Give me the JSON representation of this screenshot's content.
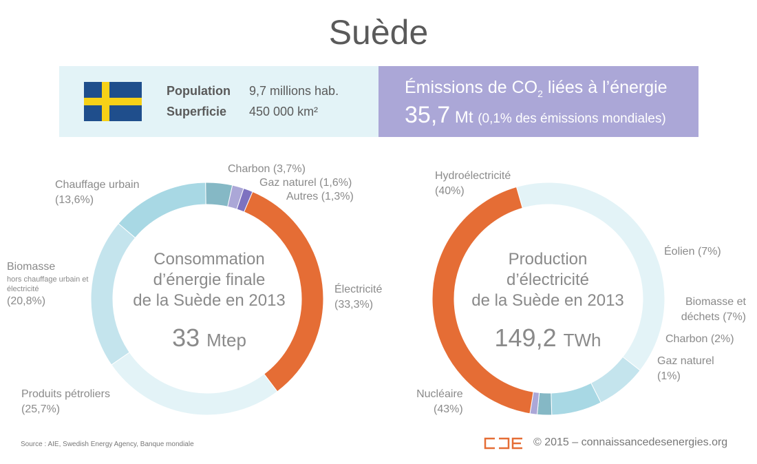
{
  "title": "Suède",
  "info": {
    "population_label": "Population",
    "population_value": "9,7 millions hab.",
    "area_label": "Superficie",
    "area_value": "450 000 km²",
    "co2_title_pre": "Émissions de CO",
    "co2_title_sub": "2",
    "co2_title_post": " liées à l’énergie",
    "co2_value": "35,7",
    "co2_unit": " Mt ",
    "co2_share": "(0,1% des émissions mondiales)"
  },
  "colors": {
    "flag_blue": "#1f4e8c",
    "flag_yellow": "#f7d117",
    "info_left_bg": "#e3f3f7",
    "info_right_bg": "#aba7d7",
    "orange": "#e56d35"
  },
  "chart_data": [
    {
      "type": "donut",
      "title_lines": [
        "Consommation",
        "d’énergie finale",
        "de la Suède en 2013"
      ],
      "total_value": "33",
      "total_unit": "Mtep",
      "slices": [
        {
          "name": "Électricité",
          "value": 33.3,
          "label_value": "(33,3%)",
          "color": "#e56d35"
        },
        {
          "name": "Produits pétroliers",
          "value": 25.7,
          "label_value": "(25,7%)",
          "color": "#e3f3f7"
        },
        {
          "name": "Biomasse",
          "note": "hors chauffage urbain et électricité",
          "value": 20.8,
          "label_value": "(20,8%)",
          "color": "#c4e4ed"
        },
        {
          "name": "Chauffage urbain",
          "value": 13.6,
          "label_value": "(13,6%)",
          "color": "#a8d8e4"
        },
        {
          "name": "Charbon",
          "value": 3.7,
          "label_value": "(3,7%)",
          "color": "#85b8c5"
        },
        {
          "name": "Gaz naturel",
          "value": 1.6,
          "label_value": "(1,6%)",
          "color": "#aba7d7"
        },
        {
          "name": "Autres",
          "value": 1.3,
          "label_value": "(1,3%)",
          "color": "#7d72c0"
        }
      ]
    },
    {
      "type": "donut",
      "title_lines": [
        "Production",
        "d’électricité",
        "de la Suède en 2013"
      ],
      "total_value": "149,2",
      "total_unit": "TWh",
      "slices": [
        {
          "name": "Hydroélectricité",
          "value": 40,
          "label_value": "(40%)",
          "color": "#e3f3f7"
        },
        {
          "name": "Éolien",
          "value": 7,
          "label_value": "(7%)",
          "color": "#c4e4ed"
        },
        {
          "name": "Biomasse et déchets",
          "value": 7,
          "label_value": "(7%)",
          "color": "#a8d8e4"
        },
        {
          "name": "Charbon",
          "value": 2,
          "label_value": "(2%)",
          "color": "#85b8c5"
        },
        {
          "name": "Gaz naturel",
          "value": 1,
          "label_value": "(1%)",
          "color": "#aba7d7"
        },
        {
          "name": "Nucléaire",
          "value": 43,
          "label_value": "(43%)",
          "color": "#e56d35"
        }
      ]
    }
  ],
  "footer": {
    "source": "Source : AIE, Swedish Energy Agency, Banque mondiale",
    "copyright": "© 2015 – connaissancedesenergies.org"
  }
}
